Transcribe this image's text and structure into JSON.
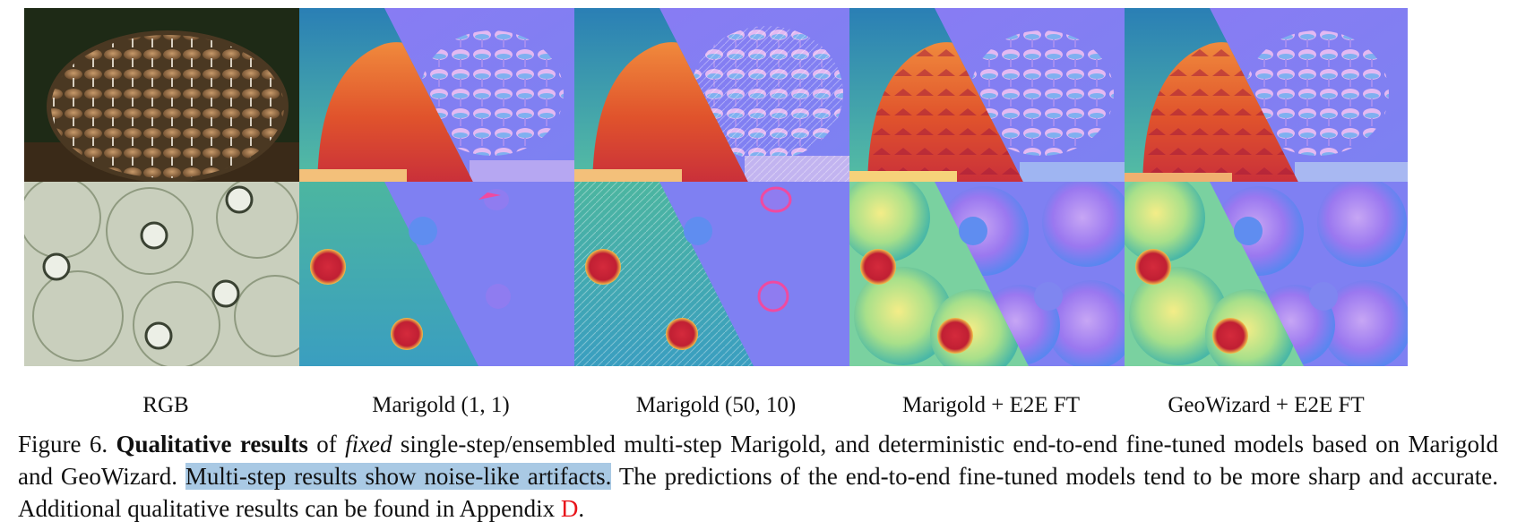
{
  "columns": [
    {
      "label": "RGB"
    },
    {
      "label": "Marigold (1, 1)"
    },
    {
      "label": "Marigold (50, 10)"
    },
    {
      "label": "Marigold + E2E FT"
    },
    {
      "label": "GeoWizard + E2E FT"
    }
  ],
  "rows": [
    {
      "subject": "mushrooms"
    },
    {
      "subject": "glass bottles"
    }
  ],
  "caption": {
    "figure": "Figure 6.",
    "title": "Qualitative results",
    "t1": " of ",
    "fixed": "fixed",
    "t2": " single-step/ensembled multi-step Marigold, and deterministic end-to-end fine-tuned models based on Marigold and GeoWizard. ",
    "highlight": "Multi-step results show noise-like artifacts.",
    "t3": " The predictions of the end-to-end fine-tuned models tend to be more sharp and accurate. Additional qualitative results can be found in Appendix ",
    "appendix": "D",
    "t4": "."
  },
  "colors": {
    "depth_warm": "#d8452a",
    "depth_cool": "#3a5fc8",
    "normal_blue": "#8079ee",
    "highlight": "#a9c9e4",
    "link_red": "#e8141a"
  }
}
